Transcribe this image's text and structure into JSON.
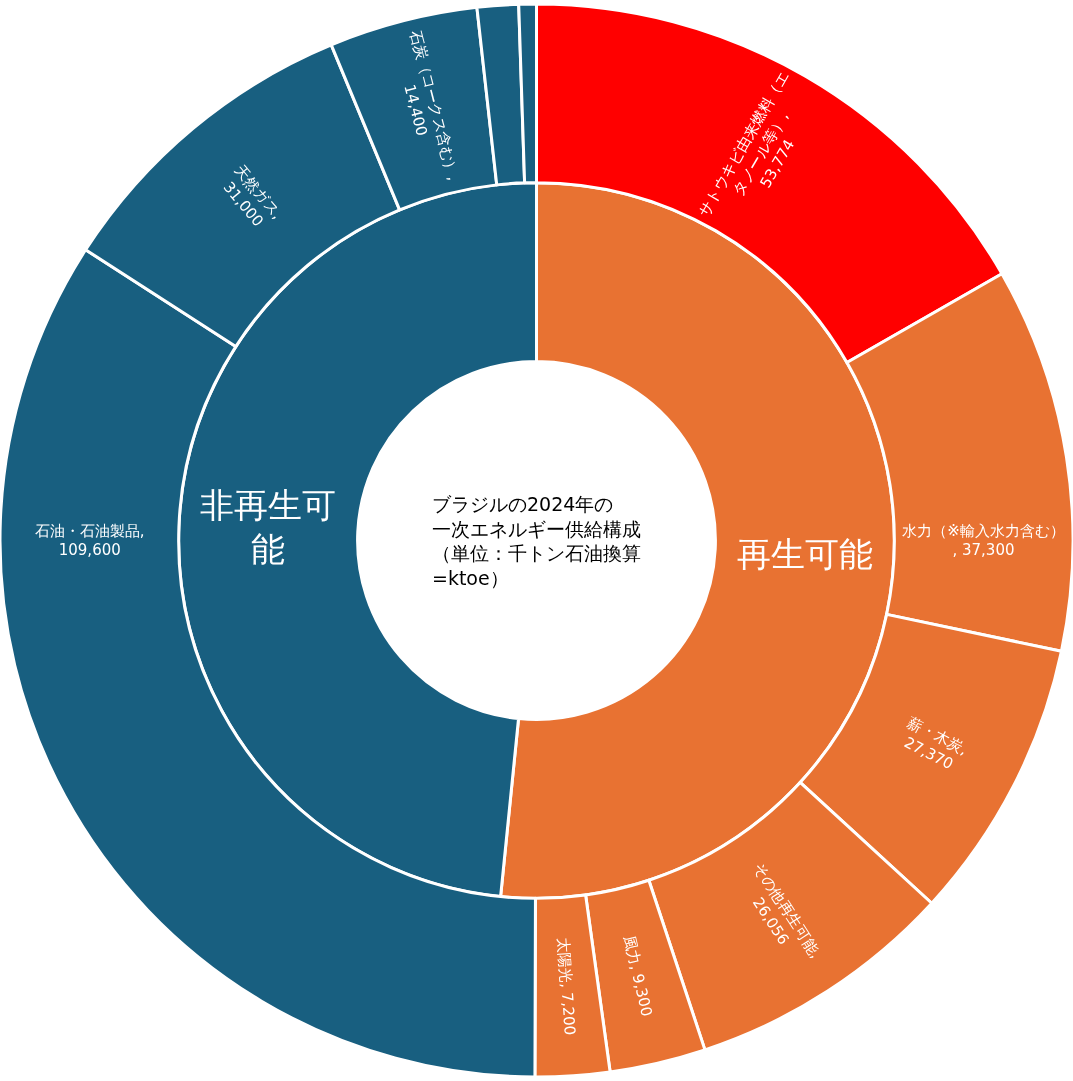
{
  "chart_data": [
    {
      "type": "donut",
      "title": "ブラジルの2024年の一次エネルギー供給構成（単位：千トン石油換算=ktoe）",
      "categories": [
        "再生可能",
        "非再生可能"
      ],
      "values": [
        51.6,
        48.4
      ],
      "colors": [
        "#e87232",
        "#185f80"
      ],
      "legend": false
    },
    {
      "type": "donut",
      "categories": [
        "サトウキビ由来燃料（エタノール等）, 53,774",
        "水力（※輸入水力含む）, 37,300",
        "薪・木炭, 27,370",
        "その他再生可能, 26,056",
        "風力, 9,300",
        "太陽光, 7,200",
        "石油・石油製品, 109,600",
        "天然ガス, 31,000",
        "石炭（コークス含む）, 14,400",
        null,
        null
      ],
      "values": [
        53774,
        37300,
        27370,
        26056,
        9300,
        7200,
        109600,
        31000,
        14400,
        4000,
        1700
      ],
      "colors": [
        "#ff0000",
        "#e87232",
        "#e87232",
        "#e87232",
        "#e87232",
        "#e87232",
        "#185f80",
        "#185f80",
        "#185f80",
        "#185f80",
        "#185f80"
      ],
      "legend": false
    }
  ]
}
